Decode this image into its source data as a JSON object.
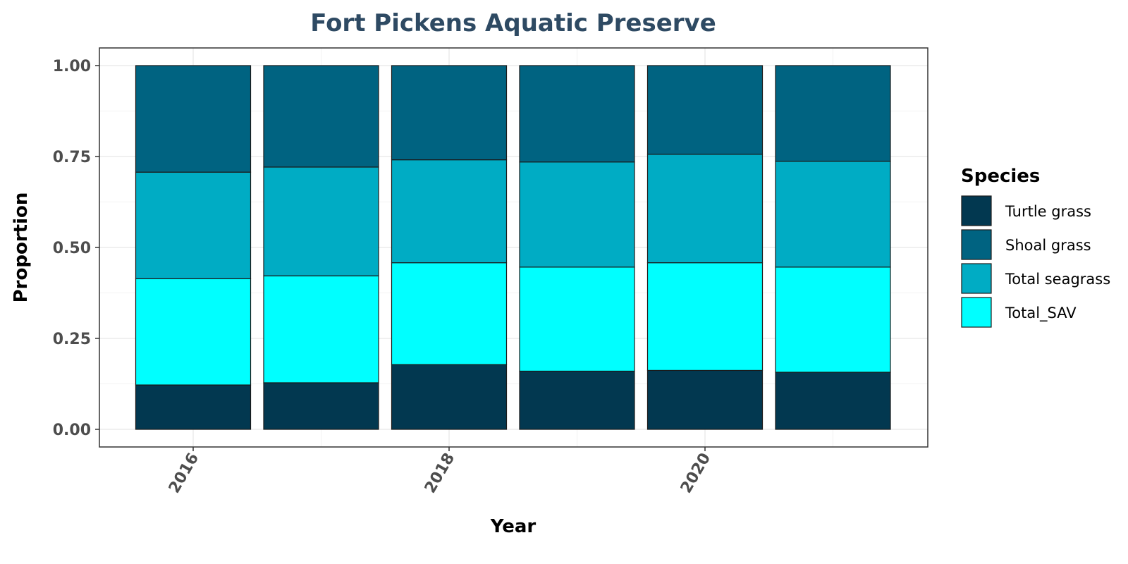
{
  "chart_data": {
    "type": "bar",
    "stacked": true,
    "title": "Fort Pickens Aquatic Preserve",
    "xlabel": "Year",
    "ylabel": "Proportion",
    "categories": [
      2016,
      2017,
      2018,
      2019,
      2020,
      2021
    ],
    "x_ticks": [
      "2016",
      "2018",
      "2020"
    ],
    "y_ticks": [
      "0.00",
      "0.25",
      "0.50",
      "0.75",
      "1.00"
    ],
    "ylim": [
      0,
      1
    ],
    "grid": true,
    "legend": {
      "title": "Species",
      "placement": "right"
    },
    "series": [
      {
        "name": "Turtle grass",
        "color": "#023850",
        "values": [
          0.122,
          0.128,
          0.178,
          0.16,
          0.162,
          0.157
        ]
      },
      {
        "name": "Total_SAV",
        "color": "#00ffff",
        "values": [
          0.292,
          0.294,
          0.28,
          0.286,
          0.296,
          0.289
        ]
      },
      {
        "name": "Total seagrass",
        "color": "#00acc4",
        "values": [
          0.293,
          0.299,
          0.283,
          0.289,
          0.298,
          0.291
        ]
      },
      {
        "name": "Shoal grass",
        "color": "#006381",
        "values": [
          0.293,
          0.279,
          0.259,
          0.265,
          0.244,
          0.263
        ]
      }
    ],
    "legend_order": [
      "Turtle grass",
      "Shoal grass",
      "Total seagrass",
      "Total_SAV"
    ]
  }
}
